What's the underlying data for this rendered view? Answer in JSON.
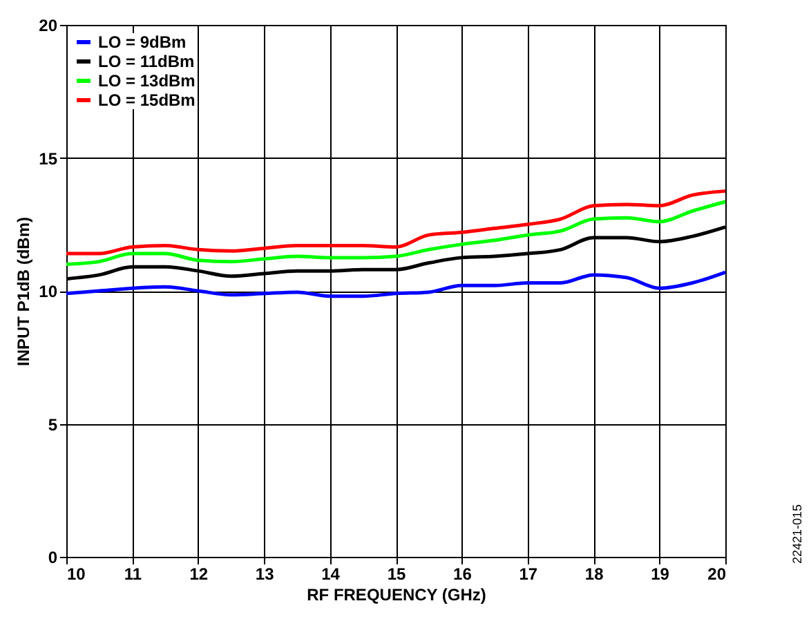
{
  "chart_data": {
    "type": "line",
    "xlabel": "RF FREQUENCY (GHz)",
    "ylabel": "INPUT P1dB (dBm)",
    "x": [
      10,
      10.5,
      11,
      11.5,
      12,
      12.5,
      13,
      13.5,
      14,
      14.5,
      15,
      15.5,
      16,
      16.5,
      17,
      17.5,
      18,
      18.5,
      19,
      19.5,
      20
    ],
    "series": [
      {
        "name": "LO = 9dBm",
        "color": "#0000ff",
        "values": [
          9.9,
          10.0,
          10.1,
          10.15,
          10.0,
          9.85,
          9.9,
          9.95,
          9.8,
          9.8,
          9.9,
          9.95,
          10.2,
          10.2,
          10.3,
          10.3,
          10.6,
          10.5,
          10.1,
          10.3,
          10.7
        ]
      },
      {
        "name": "LO = 11dBm",
        "color": "#000000",
        "values": [
          10.45,
          10.6,
          10.9,
          10.9,
          10.75,
          10.55,
          10.65,
          10.75,
          10.75,
          10.8,
          10.8,
          11.05,
          11.25,
          11.3,
          11.4,
          11.55,
          12.0,
          12.0,
          11.85,
          12.05,
          12.4
        ]
      },
      {
        "name": "LO = 13dBm",
        "color": "#00ff00",
        "values": [
          11.0,
          11.1,
          11.4,
          11.4,
          11.15,
          11.1,
          11.2,
          11.3,
          11.25,
          11.25,
          11.3,
          11.55,
          11.75,
          11.9,
          12.1,
          12.25,
          12.7,
          12.75,
          12.6,
          13.0,
          13.35
        ]
      },
      {
        "name": "LO = 15dBm",
        "color": "#ff0000",
        "values": [
          11.4,
          11.4,
          11.65,
          11.7,
          11.55,
          11.5,
          11.6,
          11.7,
          11.7,
          11.7,
          11.65,
          12.1,
          12.2,
          12.35,
          12.5,
          12.7,
          13.2,
          13.25,
          13.2,
          13.6,
          13.75
        ]
      }
    ],
    "xlim": [
      10,
      20
    ],
    "xticks": [
      10,
      11,
      12,
      13,
      14,
      15,
      16,
      17,
      18,
      19,
      20
    ],
    "ylim": [
      0,
      20
    ],
    "yticks": [
      0,
      5,
      10,
      15,
      20
    ],
    "grid": true,
    "legend": "top left",
    "line_style": "solid",
    "marker": "none",
    "annotations": [
      "22421-015"
    ]
  }
}
